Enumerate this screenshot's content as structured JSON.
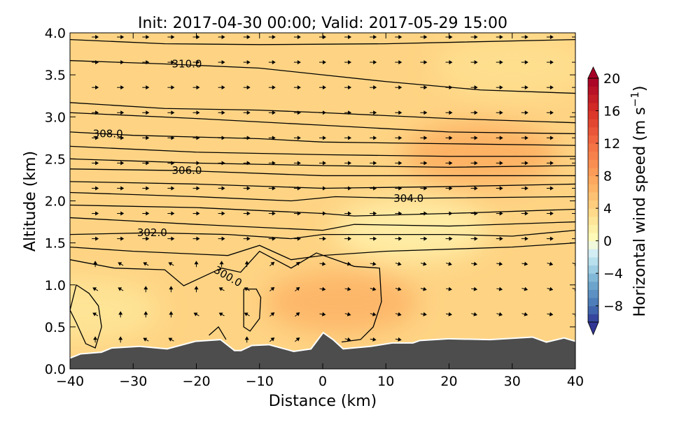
{
  "chart_data": {
    "type": "contour",
    "title": "Init: 2017-04-30 00:00; Valid: 2017-05-29 15:00",
    "xlabel": "Distance (km)",
    "ylabel": "Altitude (km)",
    "xlim": [
      -40,
      40
    ],
    "ylim": [
      0,
      4
    ],
    "xticks": [
      "−40",
      "−30",
      "−20",
      "−10",
      "0",
      "10",
      "20",
      "30",
      "40"
    ],
    "xtick_values": [
      -40,
      -30,
      -20,
      -10,
      0,
      10,
      20,
      30,
      40
    ],
    "yticks": [
      "0.0",
      "0.5",
      "1.0",
      "1.5",
      "2.0",
      "2.5",
      "3.0",
      "3.5",
      "4.0"
    ],
    "ytick_values": [
      0,
      0.5,
      1,
      1.5,
      2,
      2.5,
      3,
      3.5,
      4
    ],
    "colorbar": {
      "label": "Horizontal wind speed (m s",
      "label_sup": "−1",
      "label_end": ")",
      "range": [
        -10,
        20
      ],
      "ticks": [
        "20",
        "16",
        "12",
        "8",
        "4",
        "0",
        "−4",
        "−8"
      ],
      "tick_values": [
        20,
        16,
        12,
        8,
        4,
        0,
        -4,
        -8
      ],
      "colormap_stops": [
        [
          -10,
          "#313695"
        ],
        [
          -8,
          "#4575b4"
        ],
        [
          -5,
          "#74add1"
        ],
        [
          -3,
          "#abd9e9"
        ],
        [
          -1,
          "#e0f3f8"
        ],
        [
          0,
          "#ffffbf"
        ],
        [
          3,
          "#fee090"
        ],
        [
          7,
          "#fdae61"
        ],
        [
          12,
          "#f46d43"
        ],
        [
          16,
          "#d73027"
        ],
        [
          20,
          "#a50026"
        ]
      ],
      "extend": "both"
    },
    "background_speed": 4,
    "speed_anomalies": [
      {
        "x": 25,
        "z": 2.55,
        "value": 7
      },
      {
        "x": 3,
        "z": 0.8,
        "value": 6.5
      },
      {
        "x": 14,
        "z": 1.65,
        "value": 1.5
      },
      {
        "x": -38,
        "z": 0.7,
        "value": 2.5
      },
      {
        "x": 30,
        "z": 3.6,
        "value": 3
      }
    ],
    "terrain": [
      [
        -40,
        0.12
      ],
      [
        -38.3,
        0.17
      ],
      [
        -35,
        0.19
      ],
      [
        -33.4,
        0.24
      ],
      [
        -29,
        0.26
      ],
      [
        -24.6,
        0.23
      ],
      [
        -20.1,
        0.32
      ],
      [
        -16.2,
        0.34
      ],
      [
        -14,
        0.21
      ],
      [
        -12.9,
        0.21
      ],
      [
        -11.2,
        0.27
      ],
      [
        -8.5,
        0.28
      ],
      [
        -4.6,
        0.2
      ],
      [
        -1.8,
        0.23
      ],
      [
        0.1,
        0.42
      ],
      [
        1.6,
        0.34
      ],
      [
        3.2,
        0.23
      ],
      [
        7.6,
        0.26
      ],
      [
        11,
        0.3
      ],
      [
        14.3,
        0.3
      ],
      [
        15.4,
        0.33
      ],
      [
        19.9,
        0.35
      ],
      [
        26.5,
        0.34
      ],
      [
        33.2,
        0.37
      ],
      [
        35.4,
        0.31
      ],
      [
        38.2,
        0.36
      ],
      [
        40,
        0.32
      ]
    ],
    "contour_labels": [
      {
        "text": "310.0",
        "x": -21.5,
        "z": 3.63,
        "angle": 0
      },
      {
        "text": "308.0",
        "x": -34,
        "z": 2.8,
        "angle": 0
      },
      {
        "text": "306.0",
        "x": -21.5,
        "z": 2.36,
        "angle": 0
      },
      {
        "text": "304.0",
        "x": 13.6,
        "z": 2.03,
        "angle": 0
      },
      {
        "text": "302.0",
        "x": -27,
        "z": 1.62,
        "angle": 0
      },
      {
        "text": "300.0",
        "x": -15,
        "z": 1.1,
        "angle": 30
      }
    ],
    "theta_contours": [
      [
        [
          -40,
          3.92
        ],
        [
          -25,
          3.87
        ],
        [
          -10,
          3.86
        ],
        [
          10,
          3.87
        ],
        [
          40,
          3.92
        ]
      ],
      [
        [
          -40,
          3.67
        ],
        [
          -25,
          3.63
        ],
        [
          -10,
          3.58
        ],
        [
          0,
          3.5
        ],
        [
          10,
          3.42
        ],
        [
          25,
          3.32
        ],
        [
          40,
          3.28
        ]
      ],
      [
        [
          -40,
          3.17
        ],
        [
          -25,
          3.1
        ],
        [
          -10,
          3.08
        ],
        [
          0,
          3.05
        ],
        [
          20,
          2.98
        ],
        [
          40,
          2.93
        ]
      ],
      [
        [
          -40,
          3.05
        ],
        [
          -20,
          2.98
        ],
        [
          0,
          2.9
        ],
        [
          20,
          2.82
        ],
        [
          40,
          2.8
        ]
      ],
      [
        [
          -40,
          2.82
        ],
        [
          -30,
          2.78
        ],
        [
          -10,
          2.74
        ],
        [
          0,
          2.7
        ],
        [
          20,
          2.68
        ],
        [
          40,
          2.66
        ]
      ],
      [
        [
          -40,
          2.65
        ],
        [
          -20,
          2.58
        ],
        [
          0,
          2.55
        ],
        [
          20,
          2.53
        ],
        [
          40,
          2.53
        ]
      ],
      [
        [
          -40,
          2.5
        ],
        [
          -20,
          2.45
        ],
        [
          0,
          2.42
        ],
        [
          20,
          2.4
        ],
        [
          40,
          2.42
        ]
      ],
      [
        [
          -40,
          2.38
        ],
        [
          -22,
          2.36
        ],
        [
          0,
          2.3
        ],
        [
          20,
          2.3
        ],
        [
          40,
          2.3
        ]
      ],
      [
        [
          -40,
          2.23
        ],
        [
          -20,
          2.2
        ],
        [
          0,
          2.15
        ],
        [
          20,
          2.17
        ],
        [
          40,
          2.2
        ]
      ],
      [
        [
          -40,
          2.1
        ],
        [
          -20,
          2.05
        ],
        [
          -5,
          2.0
        ],
        [
          2,
          2.05
        ],
        [
          13,
          2.03
        ],
        [
          40,
          2.05
        ]
      ],
      [
        [
          -40,
          1.95
        ],
        [
          -20,
          1.92
        ],
        [
          0,
          1.85
        ],
        [
          5,
          1.82
        ],
        [
          20,
          1.85
        ],
        [
          40,
          1.9
        ]
      ],
      [
        [
          -40,
          1.8
        ],
        [
          -20,
          1.72
        ],
        [
          0,
          1.65
        ],
        [
          5,
          1.72
        ],
        [
          20,
          1.7
        ],
        [
          40,
          1.75
        ]
      ],
      [
        [
          -40,
          1.6
        ],
        [
          -27,
          1.62
        ],
        [
          -15,
          1.6
        ],
        [
          -5,
          1.55
        ],
        [
          0,
          1.6
        ],
        [
          20,
          1.6
        ],
        [
          30,
          1.58
        ],
        [
          40,
          1.65
        ]
      ],
      [
        [
          -40,
          1.45
        ],
        [
          -30,
          1.4
        ],
        [
          -15,
          1.35
        ],
        [
          -10,
          1.47
        ],
        [
          -5,
          1.3
        ],
        [
          0,
          1.35
        ],
        [
          10,
          1.4
        ],
        [
          30,
          1.45
        ],
        [
          40,
          1.5
        ]
      ],
      [
        [
          -40,
          1.3
        ],
        [
          -33,
          1.2
        ],
        [
          -25,
          1.18
        ],
        [
          -22,
          0.99
        ],
        [
          -16,
          1.2
        ],
        [
          -13,
          1.15
        ],
        [
          -10,
          1.4
        ],
        [
          -5,
          1.2
        ],
        [
          -1,
          1.38
        ],
        [
          5,
          1.22
        ],
        [
          9,
          1.2
        ],
        [
          9.3,
          0.8
        ],
        [
          8,
          0.5
        ],
        [
          6,
          0.35
        ],
        [
          3,
          0.32
        ]
      ],
      [
        [
          -39,
          1.0
        ],
        [
          -37,
          0.9
        ],
        [
          -35.5,
          0.75
        ],
        [
          -35,
          0.5
        ],
        [
          -36,
          0.25
        ],
        [
          -37.5,
          0.3
        ],
        [
          -39,
          0.55
        ],
        [
          -40,
          0.7
        ],
        [
          -39,
          1.0
        ]
      ],
      [
        [
          -12.5,
          0.95
        ],
        [
          -10.5,
          0.95
        ],
        [
          -9.8,
          0.85
        ],
        [
          -10,
          0.6
        ],
        [
          -11.5,
          0.45
        ],
        [
          -12.5,
          0.5
        ],
        [
          -12.5,
          0.95
        ]
      ],
      [
        [
          -18,
          0.4
        ],
        [
          -16.5,
          0.5
        ],
        [
          -15.3,
          0.35
        ]
      ]
    ],
    "wind_grid": {
      "x_start": -36,
      "x_step": 4,
      "z_start": 0.35,
      "z_step": 0.3,
      "z_end": 3.95
    }
  }
}
